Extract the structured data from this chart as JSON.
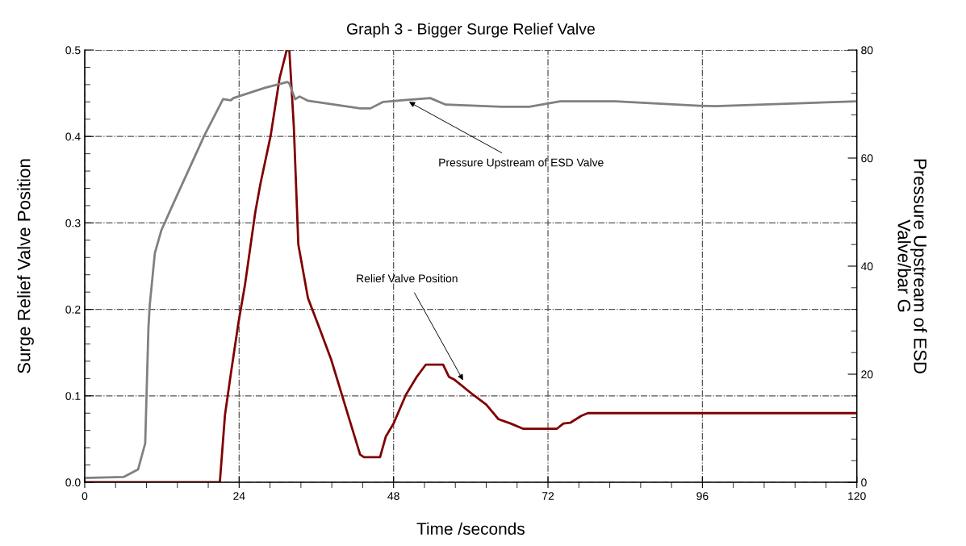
{
  "chart_data": {
    "type": "line",
    "title": "Graph 3 - Bigger Surge Relief Valve",
    "xlabel": "Time /seconds",
    "ylabel": "Surge Relief Valve Position",
    "y2label": "Pressure Upstream of ESD\nValve/bar G",
    "xlim": [
      0,
      120
    ],
    "xticks": [
      0,
      24,
      48,
      72,
      96,
      120
    ],
    "ylim": [
      0,
      0.5
    ],
    "yticks": [
      {
        "value": 0,
        "label": "0.0"
      },
      0.1,
      0.2,
      0.3,
      0.4,
      0.5
    ],
    "y2lim": [
      0,
      80
    ],
    "y2ticks": [
      0,
      20,
      40,
      60,
      80
    ],
    "grid": true,
    "series": [
      {
        "axis": "y2",
        "color": "#808080",
        "x": [
          0,
          6.1,
          8.3,
          9.4,
          9.9,
          10.1,
          10.9,
          11.9,
          13.7,
          18.6,
          21.5,
          22.7,
          23.1,
          28.0,
          31.5,
          31.8,
          32.7,
          33.4,
          34.7,
          42.8,
          44.4,
          46.4,
          50.4,
          53.7,
          56.1,
          64.8,
          69.1,
          73.9,
          82.5,
          95.5,
          98,
          120
        ],
        "values": [
          0.8,
          1.0,
          2.4,
          7.2,
          28.5,
          32.7,
          42.4,
          46.6,
          51.4,
          64.2,
          70.9,
          70.7,
          71.1,
          73.0,
          74.1,
          73.8,
          70.9,
          71.4,
          70.6,
          69.2,
          69.2,
          70.4,
          70.8,
          71.1,
          69.9,
          69.5,
          69.5,
          70.5,
          70.5,
          69.7,
          69.6,
          70.5
        ]
      },
      {
        "color": "#800000",
        "x": [
          0,
          21.0,
          21.8,
          22.7,
          23.9,
          24.9,
          26.5,
          27.3,
          28.9,
          30.3,
          31.4,
          31.8,
          32.5,
          33.2,
          34.7,
          36.5,
          38.3,
          40.1,
          42.8,
          43.4,
          45.9,
          46.8,
          48.0,
          49.9,
          51.6,
          53.0,
          55.7,
          56.6,
          57.4,
          60.4,
          62.4,
          64.3,
          66.2,
          68.1,
          73.4,
          74.4,
          75.5,
          77.2,
          78.2,
          120
        ],
        "values": [
          0,
          0,
          0.078,
          0.125,
          0.185,
          0.228,
          0.312,
          0.345,
          0.401,
          0.468,
          0.5,
          0.5,
          0.411,
          0.275,
          0.213,
          0.178,
          0.142,
          0.098,
          0.032,
          0.029,
          0.029,
          0.053,
          0.068,
          0.101,
          0.122,
          0.136,
          0.136,
          0.122,
          0.119,
          0.101,
          0.09,
          0.073,
          0.068,
          0.062,
          0.062,
          0.068,
          0.069,
          0.077,
          0.08,
          0.08
        ]
      }
    ],
    "annotations": [
      {
        "text": "Pressure Upstream of ESD Valve",
        "x": 50.4,
        "y": 0.44
      },
      {
        "text": "Relief Valve Position",
        "x": 58.8,
        "y": 0.118
      }
    ]
  }
}
